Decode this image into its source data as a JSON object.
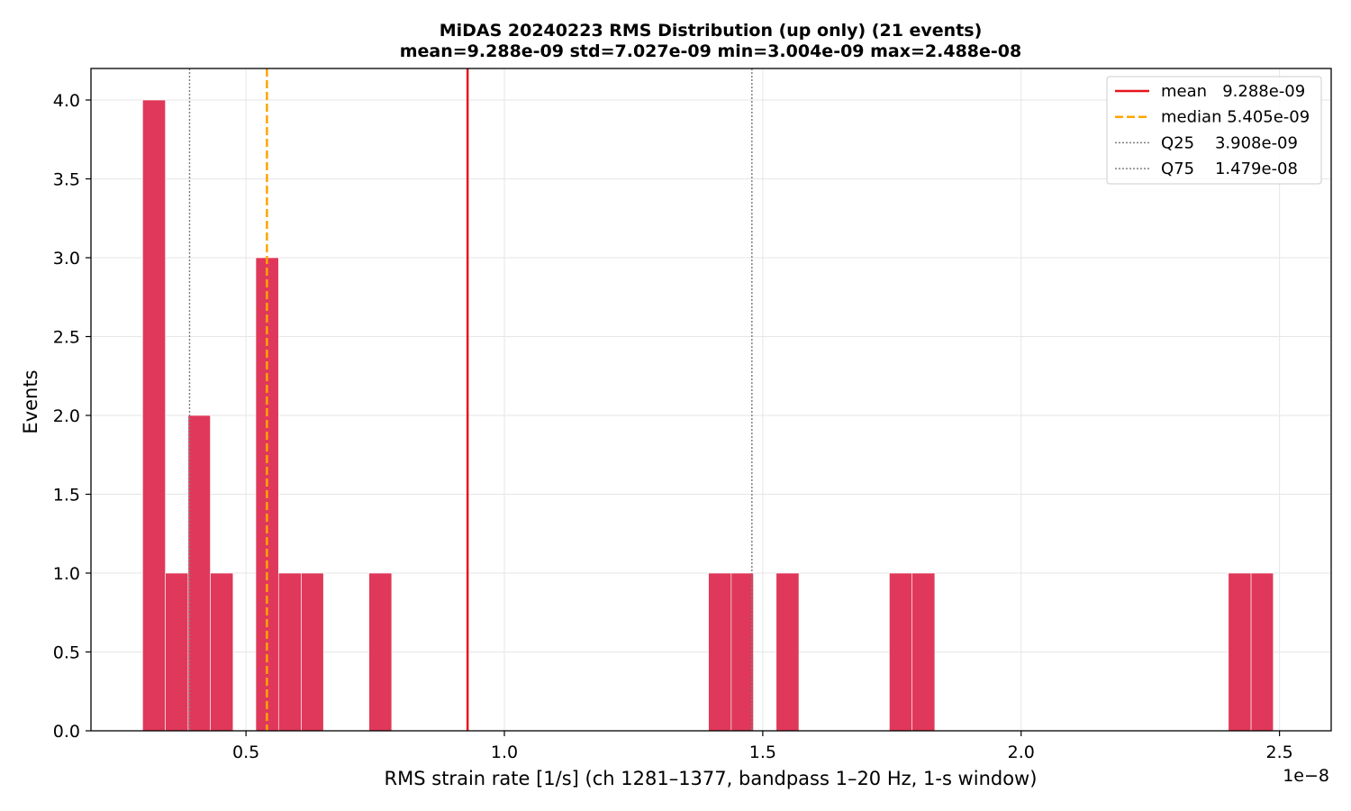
{
  "chart_data": {
    "type": "bar",
    "title": "MiDAS 20240223  RMS Distribution  (up only)  (21 events)",
    "subtitle": "mean=9.288e-09  std=7.027e-09  min=3.004e-09  max=2.488e-08",
    "xlabel": "RMS strain rate [1/s]  (ch 1281–1377, bandpass 1–20 Hz, 1-s window)",
    "ylabel": "Events",
    "x_offset_label": "1e−8",
    "xlim": [
      0.2,
      2.6
    ],
    "ylim": [
      0,
      4.2
    ],
    "x_ticks": [
      {
        "value": 0.5,
        "label": "0.5"
      },
      {
        "value": 1.0,
        "label": "1.0"
      },
      {
        "value": 1.5,
        "label": "1.5"
      },
      {
        "value": 2.0,
        "label": "2.0"
      },
      {
        "value": 2.5,
        "label": "2.5"
      }
    ],
    "y_ticks": [
      {
        "value": 0.0,
        "label": "0.0"
      },
      {
        "value": 0.5,
        "label": "0.5"
      },
      {
        "value": 1.0,
        "label": "1.0"
      },
      {
        "value": 1.5,
        "label": "1.5"
      },
      {
        "value": 2.0,
        "label": "2.0"
      },
      {
        "value": 2.5,
        "label": "2.5"
      },
      {
        "value": 3.0,
        "label": "3.0"
      },
      {
        "value": 3.5,
        "label": "3.5"
      },
      {
        "value": 4.0,
        "label": "4.0"
      }
    ],
    "grid": true,
    "bar_color": "#e0385a",
    "bins": [
      {
        "start": 0.3,
        "end": 0.344,
        "count": 4
      },
      {
        "start": 0.344,
        "end": 0.388,
        "count": 1
      },
      {
        "start": 0.388,
        "end": 0.431,
        "count": 2
      },
      {
        "start": 0.431,
        "end": 0.475,
        "count": 1
      },
      {
        "start": 0.519,
        "end": 0.563,
        "count": 3
      },
      {
        "start": 0.563,
        "end": 0.607,
        "count": 1
      },
      {
        "start": 0.607,
        "end": 0.65,
        "count": 1
      },
      {
        "start": 0.738,
        "end": 0.782,
        "count": 1
      },
      {
        "start": 1.395,
        "end": 1.439,
        "count": 1
      },
      {
        "start": 1.439,
        "end": 1.482,
        "count": 1
      },
      {
        "start": 1.526,
        "end": 1.57,
        "count": 1
      },
      {
        "start": 1.745,
        "end": 1.789,
        "count": 1
      },
      {
        "start": 1.789,
        "end": 1.833,
        "count": 1
      },
      {
        "start": 2.401,
        "end": 2.445,
        "count": 1
      },
      {
        "start": 2.445,
        "end": 2.488,
        "count": 1
      }
    ],
    "reference_lines": [
      {
        "name": "mean",
        "value_label": "9.288e-09",
        "x": 0.9288,
        "color": "#e8141c",
        "style": "solid"
      },
      {
        "name": "median",
        "value_label": "5.405e-09",
        "x": 0.5405,
        "color": "#ffa500",
        "style": "dashed"
      },
      {
        "name": "Q25",
        "value_label": "3.908e-09",
        "x": 0.3908,
        "color": "#808080",
        "style": "dotted"
      },
      {
        "name": "Q75",
        "value_label": "1.479e-08",
        "x": 1.479,
        "color": "#808080",
        "style": "dotted"
      }
    ],
    "legend": {
      "placement": "top-right",
      "entries": [
        {
          "label": "mean   9.288e-09",
          "color": "#e8141c",
          "style": "solid"
        },
        {
          "label": "median 5.405e-09",
          "color": "#ffa500",
          "style": "dashed"
        },
        {
          "label": "Q25    3.908e-09",
          "color": "#808080",
          "style": "dotted"
        },
        {
          "label": "Q75    1.479e-08",
          "color": "#808080",
          "style": "dotted"
        }
      ]
    }
  }
}
